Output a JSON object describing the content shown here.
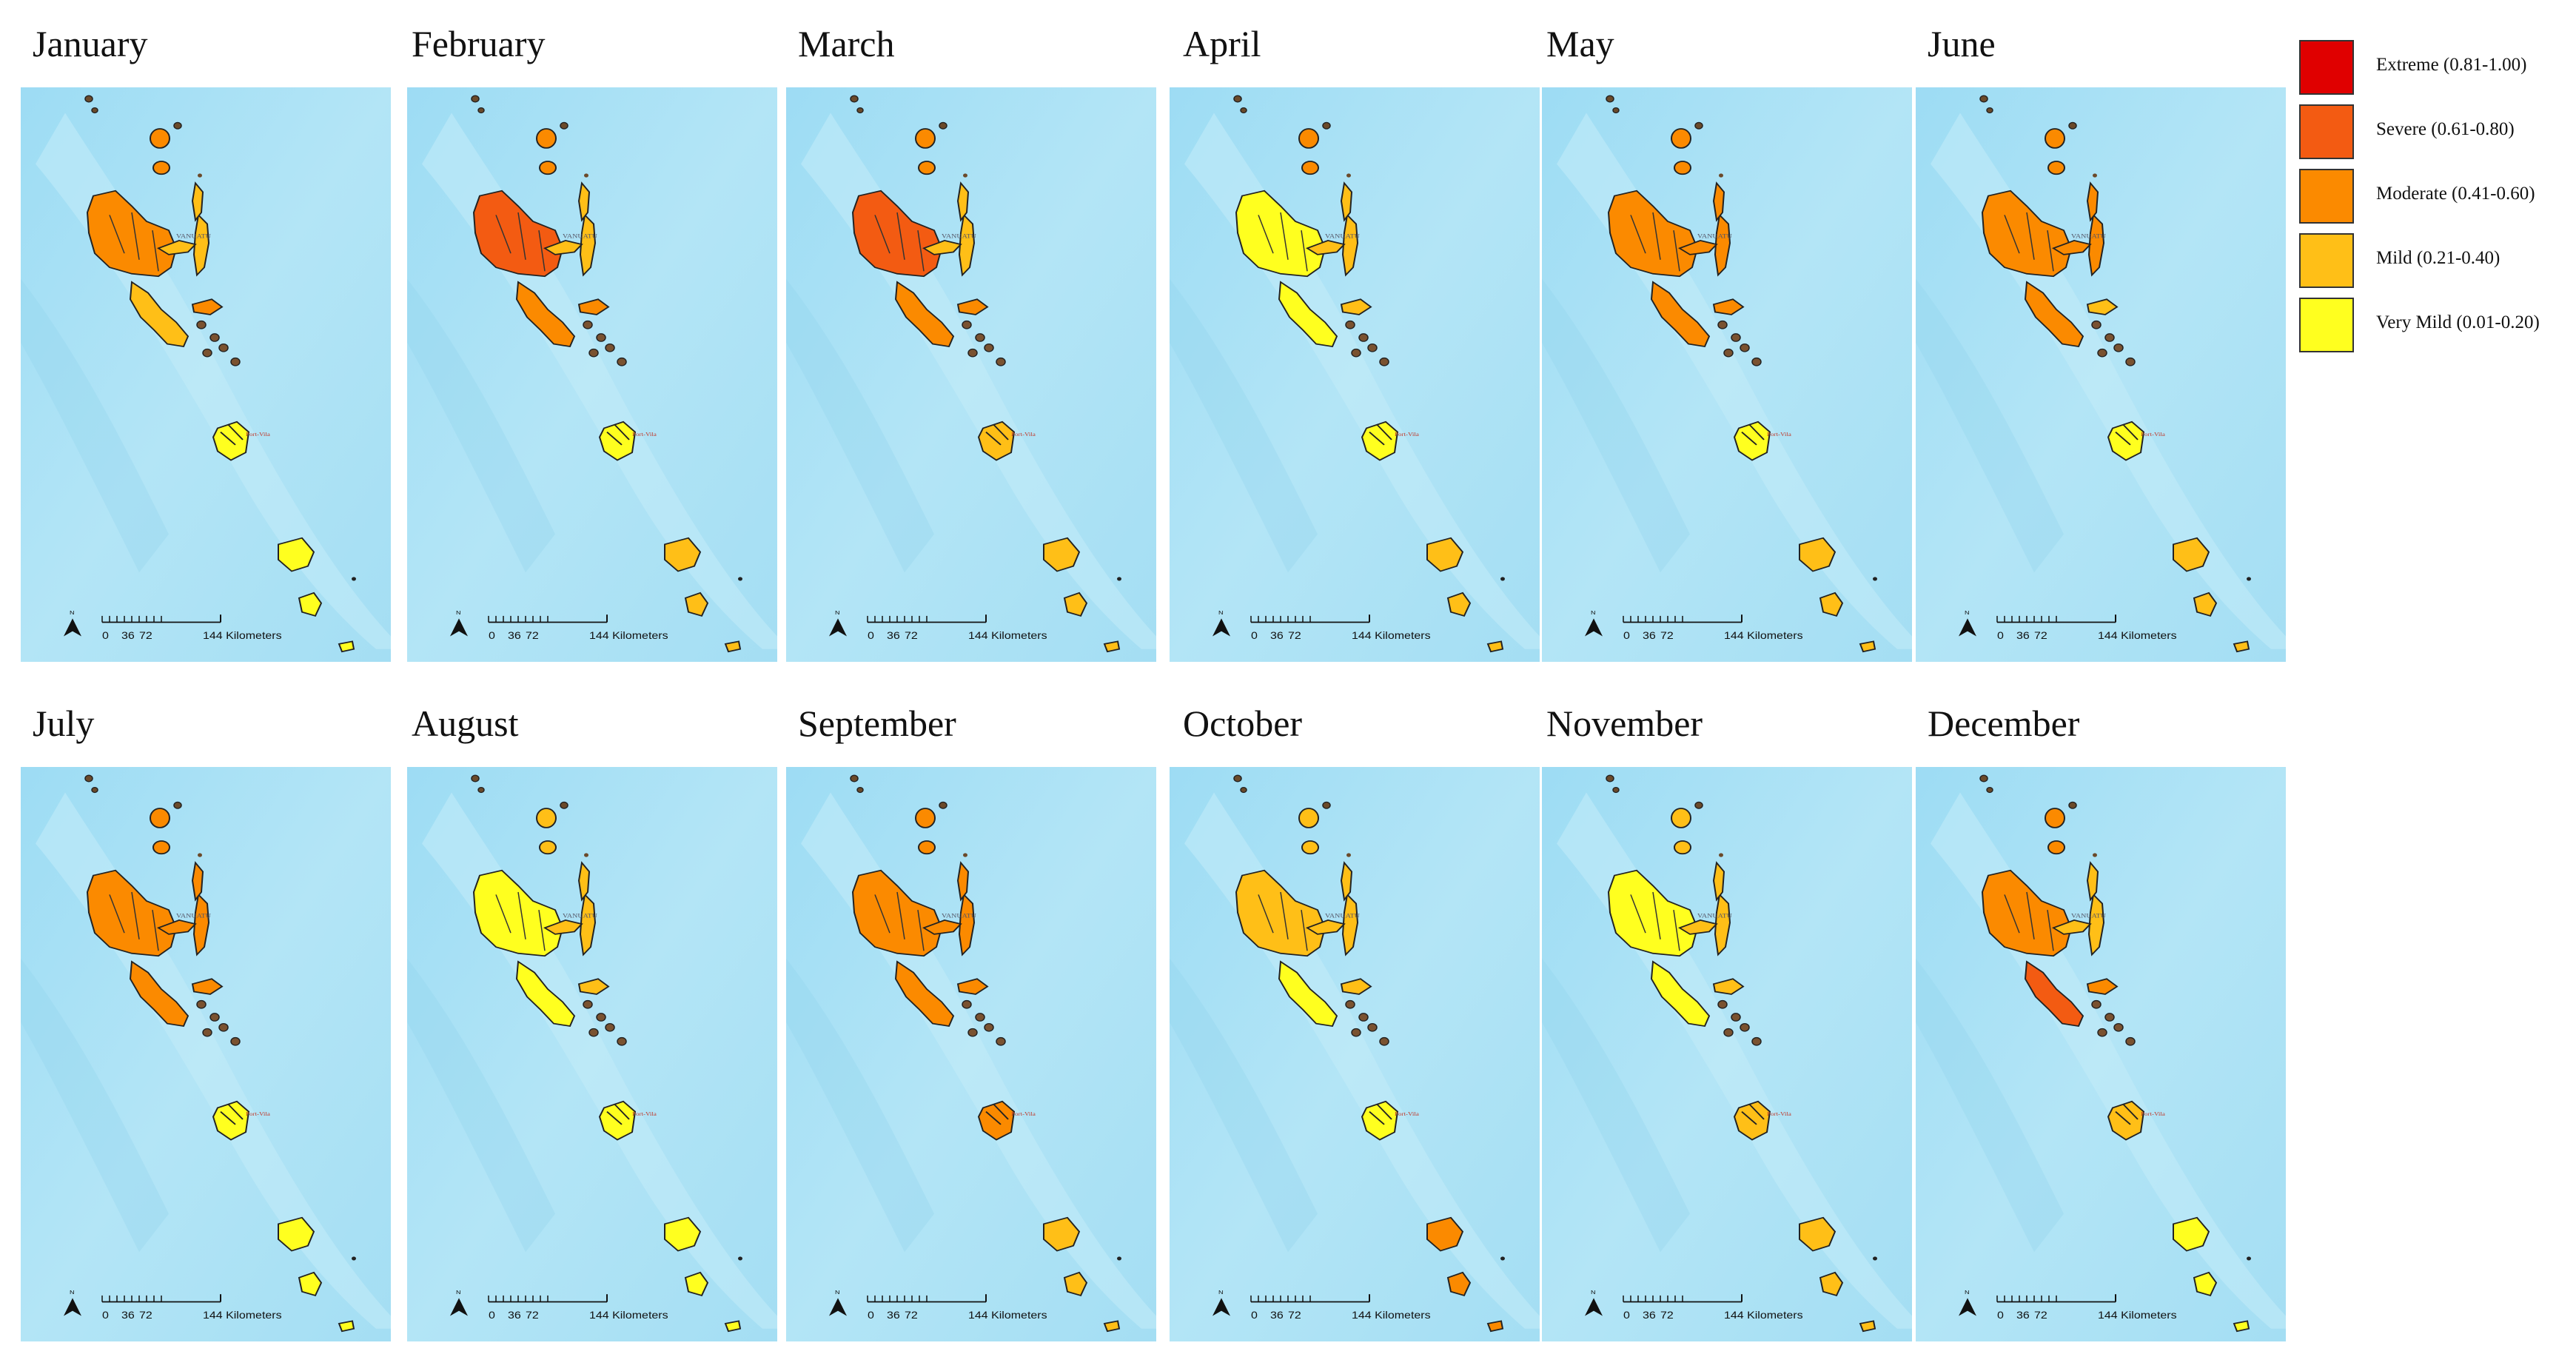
{
  "legend": {
    "items": [
      {
        "label": "Extreme (0.81-1.00)",
        "color": "#e00000"
      },
      {
        "label": "Severe (0.61-0.80)",
        "color": "#f35b12"
      },
      {
        "label": "Moderate (0.41-0.60)",
        "color": "#fb8a00"
      },
      {
        "label": "Mild (0.21-0.40)",
        "color": "#ffbf17"
      },
      {
        "label": "Very Mild (0.01-0.20)",
        "color": "#ffff1f"
      }
    ]
  },
  "map_labels": {
    "country": "VANUATU",
    "capital": "Port-Vila"
  },
  "scale_bar": {
    "ticks": [
      "0",
      "36",
      "72",
      "144 Kilometers"
    ],
    "north": "N"
  },
  "months": [
    {
      "name": "January",
      "severity": {
        "north": 2,
        "santo": 2,
        "east": 3,
        "malekula": 3,
        "central": 2,
        "efate": 4,
        "south": 4
      }
    },
    {
      "name": "February",
      "severity": {
        "north": 2,
        "santo": 1,
        "east": 3,
        "malekula": 2,
        "central": 2,
        "efate": 4,
        "south": 3
      }
    },
    {
      "name": "March",
      "severity": {
        "north": 2,
        "santo": 1,
        "east": 3,
        "malekula": 2,
        "central": 2,
        "efate": 3,
        "south": 3
      }
    },
    {
      "name": "April",
      "severity": {
        "north": 2,
        "santo": 4,
        "east": 3,
        "malekula": 4,
        "central": 3,
        "efate": 4,
        "south": 3
      }
    },
    {
      "name": "May",
      "severity": {
        "north": 2,
        "santo": 2,
        "east": 2,
        "malekula": 2,
        "central": 2,
        "efate": 4,
        "south": 3
      }
    },
    {
      "name": "June",
      "severity": {
        "north": 2,
        "santo": 2,
        "east": 2,
        "malekula": 2,
        "central": 3,
        "efate": 4,
        "south": 3
      }
    },
    {
      "name": "July",
      "severity": {
        "north": 2,
        "santo": 2,
        "east": 2,
        "malekula": 2,
        "central": 2,
        "efate": 4,
        "south": 4
      }
    },
    {
      "name": "August",
      "severity": {
        "north": 3,
        "santo": 4,
        "east": 3,
        "malekula": 4,
        "central": 3,
        "efate": 4,
        "south": 4
      }
    },
    {
      "name": "September",
      "severity": {
        "north": 2,
        "santo": 2,
        "east": 2,
        "malekula": 2,
        "central": 2,
        "efate": 2,
        "south": 3
      }
    },
    {
      "name": "October",
      "severity": {
        "north": 3,
        "santo": 3,
        "east": 3,
        "malekula": 4,
        "central": 3,
        "efate": 4,
        "south": 2
      }
    },
    {
      "name": "November",
      "severity": {
        "north": 3,
        "santo": 4,
        "east": 3,
        "malekula": 4,
        "central": 3,
        "efate": 3,
        "south": 3
      }
    },
    {
      "name": "December",
      "severity": {
        "north": 2,
        "santo": 2,
        "east": 3,
        "malekula": 1,
        "central": 2,
        "efate": 3,
        "south": 4
      }
    }
  ]
}
